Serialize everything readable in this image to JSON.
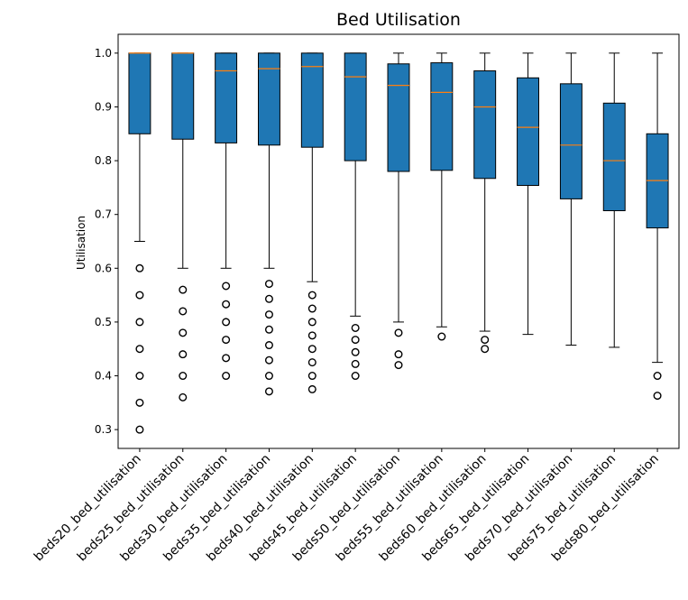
{
  "chart_data": {
    "type": "box",
    "title": "Bed Utilisation",
    "xlabel": "",
    "ylabel": "Utilisation",
    "ylim": [
      0.265,
      1.035
    ],
    "yticks": [
      0.3,
      0.4,
      0.5,
      0.6,
      0.7,
      0.8,
      0.9,
      1.0
    ],
    "ytick_labels": [
      "0.3",
      "0.4",
      "0.5",
      "0.6",
      "0.7",
      "0.8",
      "0.9",
      "1.0"
    ],
    "grid": false,
    "box_color": "#1f77b4",
    "median_color": "#ff7f0e",
    "categories": [
      "beds20_bed_utilisation",
      "beds25_bed_utilisation",
      "beds30_bed_utilisation",
      "beds35_bed_utilisation",
      "beds40_bed_utilisation",
      "beds45_bed_utilisation",
      "beds50_bed_utilisation",
      "beds55_bed_utilisation",
      "beds60_bed_utilisation",
      "beds65_bed_utilisation",
      "beds70_bed_utilisation",
      "beds75_bed_utilisation",
      "beds80_bed_utilisation"
    ],
    "boxes": [
      {
        "whisker_low": 0.65,
        "q1": 0.85,
        "median": 1.0,
        "q3": 1.0,
        "whisker_high": 1.0,
        "outliers": [
          0.6,
          0.55,
          0.5,
          0.45,
          0.4,
          0.35,
          0.3
        ]
      },
      {
        "whisker_low": 0.6,
        "q1": 0.84,
        "median": 1.0,
        "q3": 1.0,
        "whisker_high": 1.0,
        "outliers": [
          0.56,
          0.52,
          0.48,
          0.44,
          0.4,
          0.36
        ]
      },
      {
        "whisker_low": 0.6,
        "q1": 0.833,
        "median": 0.967,
        "q3": 1.0,
        "whisker_high": 1.0,
        "outliers": [
          0.567,
          0.533,
          0.5,
          0.467,
          0.433,
          0.4
        ]
      },
      {
        "whisker_low": 0.6,
        "q1": 0.829,
        "median": 0.971,
        "q3": 1.0,
        "whisker_high": 1.0,
        "outliers": [
          0.571,
          0.543,
          0.514,
          0.486,
          0.457,
          0.429,
          0.4,
          0.371
        ]
      },
      {
        "whisker_low": 0.575,
        "q1": 0.825,
        "median": 0.975,
        "q3": 1.0,
        "whisker_high": 1.0,
        "outliers": [
          0.55,
          0.525,
          0.5,
          0.475,
          0.45,
          0.425,
          0.4,
          0.375
        ]
      },
      {
        "whisker_low": 0.511,
        "q1": 0.8,
        "median": 0.956,
        "q3": 1.0,
        "whisker_high": 1.0,
        "outliers": [
          0.489,
          0.467,
          0.444,
          0.422,
          0.4
        ]
      },
      {
        "whisker_low": 0.5,
        "q1": 0.78,
        "median": 0.94,
        "q3": 0.98,
        "whisker_high": 1.0,
        "outliers": [
          0.48,
          0.44,
          0.42
        ]
      },
      {
        "whisker_low": 0.491,
        "q1": 0.782,
        "median": 0.927,
        "q3": 0.982,
        "whisker_high": 1.0,
        "outliers": [
          0.473
        ]
      },
      {
        "whisker_low": 0.483,
        "q1": 0.767,
        "median": 0.9,
        "q3": 0.967,
        "whisker_high": 1.0,
        "outliers": [
          0.467,
          0.45
        ]
      },
      {
        "whisker_low": 0.477,
        "q1": 0.754,
        "median": 0.862,
        "q3": 0.954,
        "whisker_high": 1.0,
        "outliers": []
      },
      {
        "whisker_low": 0.457,
        "q1": 0.729,
        "median": 0.829,
        "q3": 0.943,
        "whisker_high": 1.0,
        "outliers": []
      },
      {
        "whisker_low": 0.453,
        "q1": 0.707,
        "median": 0.8,
        "q3": 0.907,
        "whisker_high": 1.0,
        "outliers": []
      },
      {
        "whisker_low": 0.425,
        "q1": 0.675,
        "median": 0.763,
        "q3": 0.85,
        "whisker_high": 1.0,
        "outliers": [
          0.4,
          0.363
        ]
      }
    ]
  }
}
